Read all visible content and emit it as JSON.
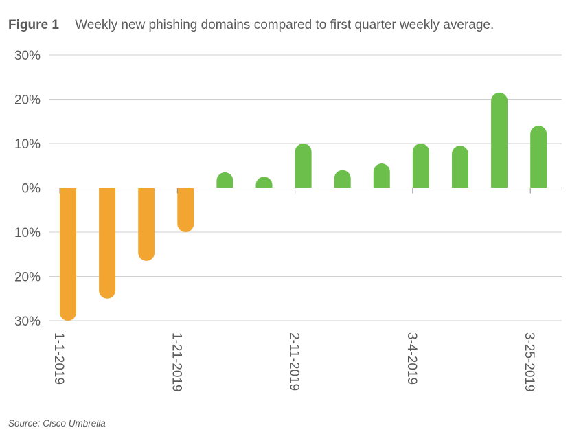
{
  "figure": {
    "label": "Figure 1",
    "title": "Weekly new phishing domains compared to first quarter weekly average."
  },
  "source": "Source: Cisco Umbrella",
  "colors": {
    "negative": "#F2A531",
    "positive": "#6CBF4A",
    "grid": "#cfcfcf",
    "axis": "#8c8c8c",
    "text": "#5a5a5a"
  },
  "chart_data": {
    "type": "bar",
    "x": [
      "1-1-2019",
      "",
      "",
      "1-21-2019",
      "",
      "",
      "2-11-2019",
      "",
      "",
      "3-4-2019",
      "",
      "",
      "3-25-2019"
    ],
    "values": [
      -30,
      -25,
      -16.5,
      -10,
      3.5,
      2.5,
      10,
      4,
      5.5,
      10,
      9.5,
      21.5,
      14
    ],
    "ylim": [
      -30,
      30
    ],
    "yticks": [
      30,
      20,
      10,
      0,
      -10,
      -20,
      -30
    ],
    "ytick_labels": [
      "30%",
      "20%",
      "10%",
      "0%",
      "10%",
      "20%",
      "30%"
    ],
    "xtick_labels": [
      "1-1-2019",
      "1-21-2019",
      "2-11-2019",
      "3-4-2019",
      "3-25-2019"
    ],
    "grid": true,
    "legend": "none"
  }
}
